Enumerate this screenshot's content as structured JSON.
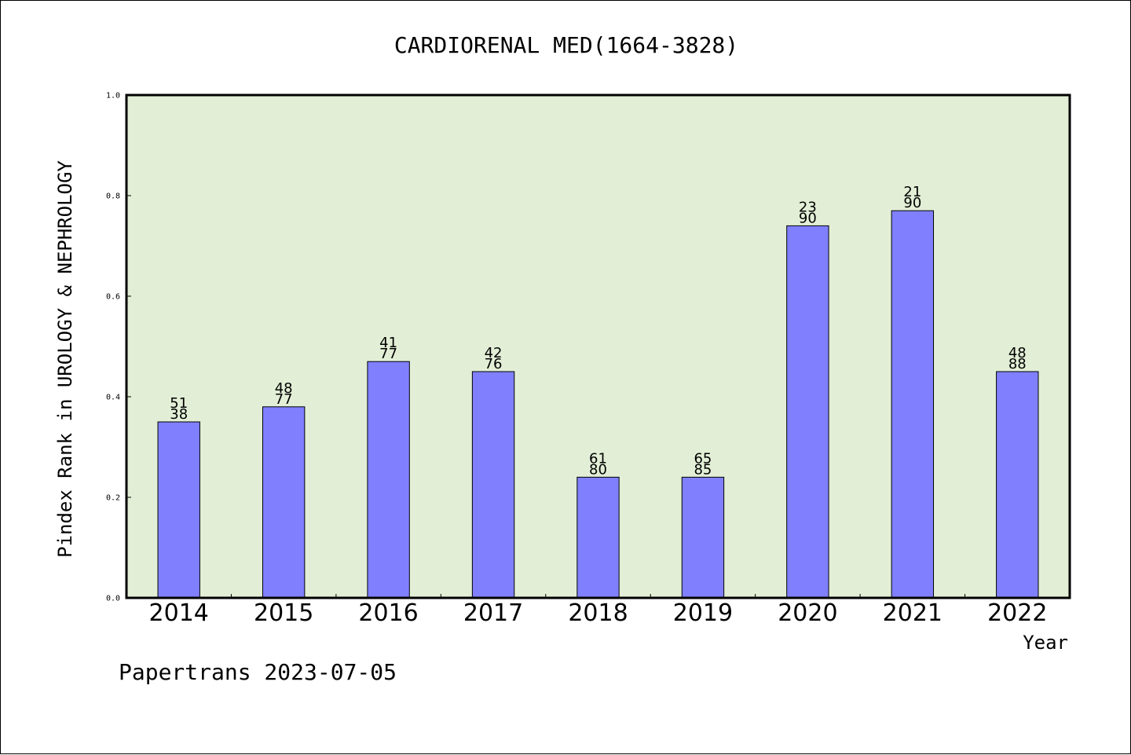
{
  "chart_data": {
    "type": "bar",
    "title": "CARDIORENAL MED(1664-3828)",
    "xlabel": "Year",
    "ylabel": "Pindex Rank in UROLOGY & NEPHROLOGY",
    "ylim": [
      0.0,
      1.0
    ],
    "yticks": [
      "0.0",
      "0.2",
      "0.4",
      "0.6",
      "0.8",
      "1.0"
    ],
    "ytick_values": [
      0.0,
      0.2,
      0.4,
      0.6,
      0.8,
      1.0
    ],
    "categories": [
      "2014",
      "2015",
      "2016",
      "2017",
      "2018",
      "2019",
      "2020",
      "2021",
      "2022"
    ],
    "values": [
      0.35,
      0.38,
      0.47,
      0.45,
      0.24,
      0.24,
      0.74,
      0.77,
      0.45
    ],
    "label_top": [
      "51",
      "48",
      "41",
      "42",
      "61",
      "65",
      "23",
      "21",
      "48"
    ],
    "label_bottom": [
      "38",
      "77",
      "77",
      "76",
      "80",
      "85",
      "90",
      "90",
      "88"
    ],
    "grid": false,
    "colors": {
      "plot_bg": "#e2efd6",
      "bar": "#8080ff",
      "bar_edge": "#000000"
    }
  },
  "footer": "Papertrans 2023-07-05"
}
